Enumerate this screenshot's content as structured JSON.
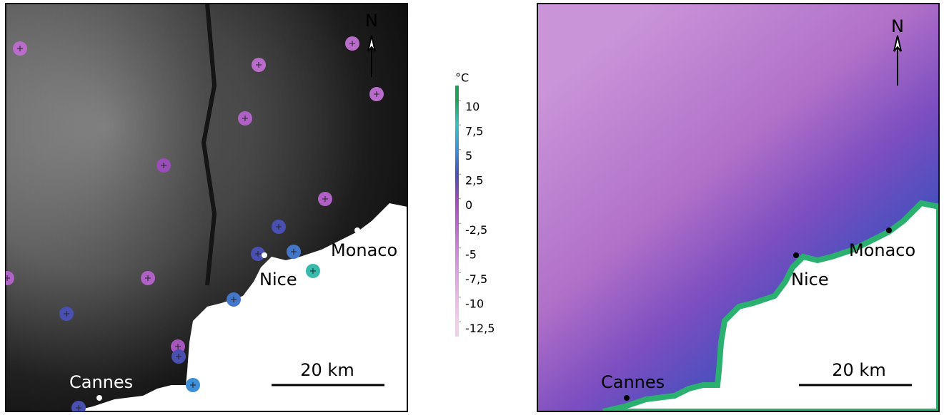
{
  "panels": [
    {
      "north": "N",
      "cities": [
        "Monaco",
        "Nice",
        "Cannes"
      ],
      "scale_bar": "20 km",
      "stations": [
        -3,
        -3,
        -3,
        -3,
        -2,
        0,
        -2,
        2.5,
        2.5,
        4,
        8,
        -2,
        -2,
        2.5,
        4,
        -1,
        2.5,
        5,
        2.5
      ]
    },
    {
      "north": "N",
      "cities": [
        "Monaco",
        "Nice",
        "Cannes"
      ],
      "scale_bar": "20 km"
    }
  ],
  "colorbar": {
    "unit": "°C",
    "range": [
      -14,
      11.5
    ],
    "ticks": [
      10,
      {
        "value": 7.5,
        "label": "7,5"
      },
      5,
      {
        "value": 2.5,
        "label": "2,5"
      },
      0,
      {
        "value": -2.5,
        "label": "-2,5"
      },
      -5,
      {
        "value": -7.5,
        "label": "-7,5"
      },
      -10,
      {
        "value": -12.5,
        "label": "-12,5"
      }
    ],
    "colors": [
      "#22a05a",
      "#3cc0c0",
      "#3f8fd6",
      "#4a4fb2",
      "#9a4db8",
      "#b566c8",
      "#c985d4",
      "#d9a2de",
      "#e6b9e4",
      "#f0cfea"
    ]
  }
}
